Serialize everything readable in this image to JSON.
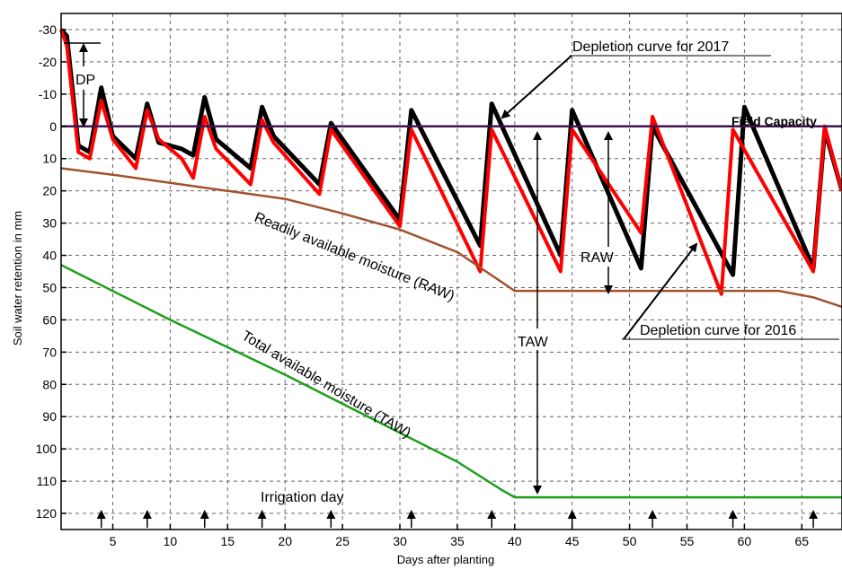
{
  "chart_data": {
    "type": "line",
    "xlabel": "Days after planting",
    "ylabel": "Soil water retention in mm",
    "xlim": [
      0.5,
      68.5
    ],
    "ylim": [
      -35,
      125
    ],
    "y_inverted": true,
    "grid": true,
    "x_ticks": [
      5,
      10,
      15,
      20,
      25,
      30,
      35,
      40,
      45,
      50,
      55,
      60,
      65
    ],
    "y_ticks": [
      -30,
      -20,
      -10,
      0,
      10,
      20,
      30,
      40,
      50,
      60,
      70,
      80,
      90,
      100,
      110,
      120
    ],
    "x_tick_labels": [
      "5",
      "10",
      "15",
      "20",
      "25",
      "30",
      "35",
      "40",
      "45",
      "50",
      "55",
      "60",
      "65"
    ],
    "y_tick_labels": [
      "-30",
      "-20",
      "-10",
      "0",
      "10",
      "20",
      "30",
      "40",
      "50",
      "60",
      "70",
      "80",
      "90",
      "100",
      "110",
      "120"
    ],
    "series": [
      {
        "color": "#000000",
        "x": [
          0.5,
          1,
          2,
          3,
          4,
          5,
          7,
          8,
          9,
          11,
          12,
          13,
          14,
          17,
          18,
          19,
          23,
          24,
          30,
          31,
          37,
          38,
          44,
          45,
          51,
          52,
          59,
          60,
          66,
          67,
          68.5
        ],
        "y": [
          -30,
          -28,
          6,
          8,
          -12,
          3,
          10,
          -7,
          5,
          7,
          9,
          -9,
          4,
          13,
          -6,
          3,
          18,
          -1,
          29,
          -5,
          37,
          -7,
          40,
          -5,
          44,
          0,
          46,
          -6,
          44,
          1,
          20
        ]
      },
      {
        "color": "#ff0000",
        "x": [
          0.5,
          1,
          2,
          3,
          4,
          5,
          7,
          8,
          9,
          11,
          12,
          13,
          14,
          17,
          18,
          19,
          23,
          24,
          30,
          31,
          37,
          38,
          44,
          45,
          51,
          52,
          58,
          59,
          66,
          67,
          68.5
        ],
        "y": [
          -30,
          -25,
          8,
          10,
          -8,
          4,
          13,
          -5,
          4,
          10,
          16,
          -3,
          7,
          18,
          -2,
          5,
          21,
          1,
          31,
          1,
          45,
          1,
          45,
          1,
          33,
          -3,
          52,
          1,
          45,
          0,
          20
        ]
      },
      {
        "color": "#a0522d",
        "x": [
          0.5,
          5,
          10,
          15,
          20,
          25,
          30,
          35,
          40,
          50,
          60,
          63,
          66,
          68.5
        ],
        "y": [
          13,
          15,
          17.5,
          20,
          22.5,
          27,
          32,
          39,
          51,
          51,
          51,
          51,
          53,
          56
        ]
      },
      {
        "color": "#1f9e1f",
        "x": [
          0.5,
          10,
          20,
          30,
          35,
          39,
          40,
          50,
          60,
          68.5
        ],
        "y": [
          43,
          60,
          77,
          95,
          104,
          113,
          115,
          115,
          115,
          115
        ]
      },
      {
        "color": "#3d1450",
        "x": [
          0.5,
          68.5
        ],
        "y": [
          0,
          0
        ]
      }
    ],
    "irrigation_days": [
      4,
      8,
      13,
      18,
      24,
      31,
      38,
      45,
      52,
      59,
      66
    ],
    "annotations": {
      "dp": "DP",
      "depletion_2017": "Depletion curve for 2017",
      "depletion_2016": "Depletion curve for 2016",
      "field_capacity": "Field Capacity",
      "raw_curve": "Readily available moisture (RAW)",
      "taw_curve": "Total available moisture (TAW)",
      "raw": "RAW",
      "taw": "TAW",
      "irrigation_day": "Irrigation day"
    }
  }
}
